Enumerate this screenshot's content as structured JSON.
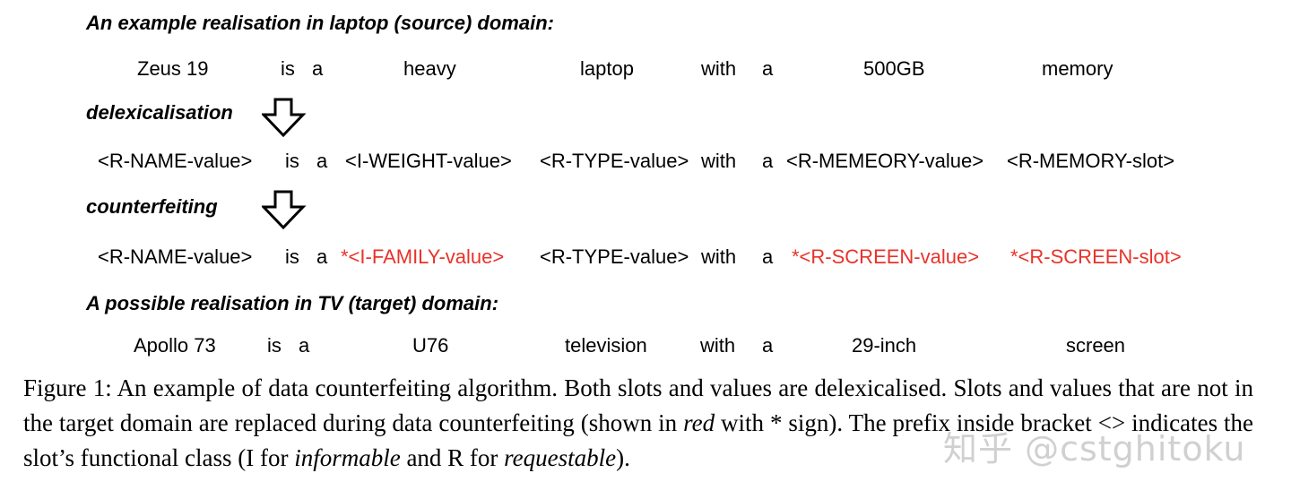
{
  "headings": {
    "source": "An example realisation in laptop (source) domain:",
    "delex": "delexicalisation",
    "counter": "counterfeiting",
    "target": "A possible realisation in TV (target) domain:"
  },
  "row1": [
    "Zeus 19",
    "is",
    "a",
    "heavy",
    "laptop",
    "with",
    "a",
    "500GB",
    "memory"
  ],
  "row2": [
    "<R-NAME-value>",
    "is",
    "a",
    "<I-WEIGHT-value>",
    "<R-TYPE-value>",
    "with",
    "a",
    "<R-MEMEORY-value>",
    "<R-MEMORY-slot>"
  ],
  "row3": [
    "<R-NAME-value>",
    "is",
    "a",
    "*<I-FAMILY-value>",
    "<R-TYPE-value>",
    "with",
    "a",
    "*<R-SCREEN-value>",
    "*<R-SCREEN-slot>"
  ],
  "row4": [
    "Apollo 73",
    "is",
    "a",
    "U76",
    "television",
    "with",
    "a",
    "29-inch",
    "screen"
  ],
  "caption": {
    "part1": "Figure 1: An example of data counterfeiting algorithm. Both slots and values are delexicalised. Slots and values that are not in the target domain are replaced during data counterfeiting (shown in ",
    "red": "red",
    "part2": " with * sign). The prefix inside bracket <> indicates the slot’s functional class (I for ",
    "informable": "informable",
    "part3": " and R for ",
    "requestable": "requestable",
    "part4": ")."
  },
  "watermark": "知乎 @cstghitoku",
  "colors": {
    "counterfeit_red": "#e8332a"
  },
  "icons": [
    "down-arrow-icon",
    "down-arrow-icon"
  ]
}
